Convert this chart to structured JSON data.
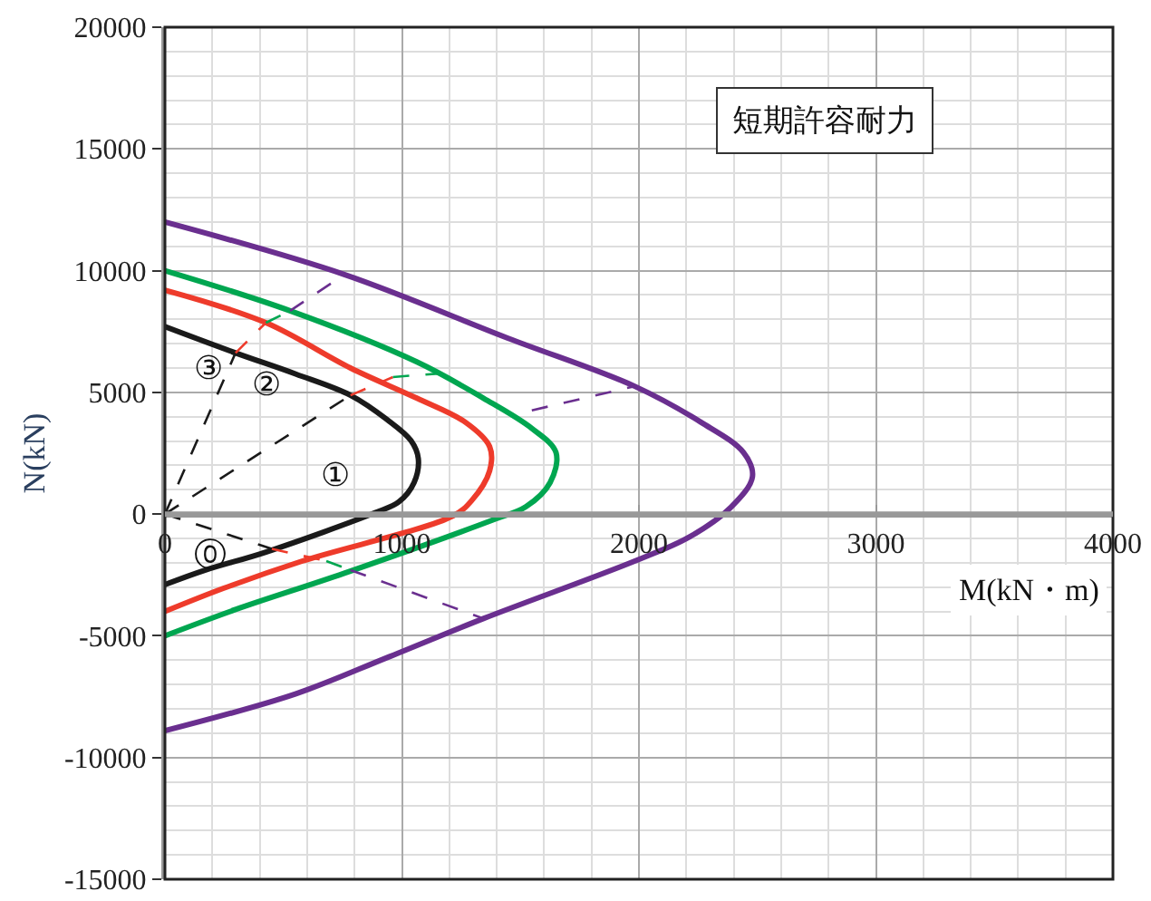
{
  "chart_data": {
    "type": "line",
    "title": "短期許容耐力",
    "xlabel": "M(kN・m)",
    "ylabel": "N(kN)",
    "xlim": [
      0,
      4000
    ],
    "xticks": [
      0,
      1000,
      2000,
      3000,
      4000
    ],
    "ylim": [
      -15000,
      20000
    ],
    "yticks": [
      -15000,
      -10000,
      -5000,
      0,
      5000,
      10000,
      15000,
      20000
    ],
    "grid": true,
    "marker": "none",
    "line_style": "solid",
    "series": [
      {
        "color": "#1a1a1a",
        "x": [
          0,
          298,
          553,
          783,
          936,
          1038,
          1069,
          1051,
          987,
          885,
          426,
          171,
          0
        ],
        "values": [
          7700,
          6620,
          5750,
          4880,
          3890,
          3020,
          2280,
          1290,
          500,
          50,
          -1560,
          -2300,
          -2900
        ]
      },
      {
        "color": "#ee3b2b",
        "x": [
          0,
          426,
          783,
          1063,
          1268,
          1370,
          1370,
          1293,
          1216,
          579,
          247,
          0
        ],
        "values": [
          9200,
          7860,
          6000,
          4760,
          3770,
          2770,
          1780,
          540,
          -70,
          -1930,
          -3050,
          -4000
        ]
      },
      {
        "color": "#00a650",
        "x": [
          0,
          528,
          1063,
          1344,
          1548,
          1650,
          1625,
          1523,
          1395,
          757,
          298,
          0
        ],
        "values": [
          10000,
          8350,
          6250,
          4760,
          3520,
          2530,
          1290,
          300,
          -200,
          -2430,
          -3920,
          -5000
        ]
      },
      {
        "color": "#6a2f8f",
        "x": [
          0,
          757,
          1446,
          1982,
          2262,
          2441,
          2479,
          2390,
          2211,
          1982,
          1344,
          936,
          553,
          0
        ],
        "values": [
          12000,
          9840,
          7230,
          5250,
          3770,
          2530,
          1540,
          300,
          -950,
          -1930,
          -4290,
          -5900,
          -7380,
          -8900
        ]
      },
      {
        "color": "#1a1a1a",
        "line_style": "dashed",
        "x": [
          0,
          298
        ],
        "values": [
          0,
          6620
        ]
      },
      {
        "color": "#ee3b2b",
        "line_style": "dashed",
        "x": [
          298,
          426
        ],
        "values": [
          6620,
          7860
        ]
      },
      {
        "color": "#00a650",
        "line_style": "dashed",
        "x": [
          426,
          528
        ],
        "values": [
          7860,
          8350
        ]
      },
      {
        "color": "#6a2f8f",
        "line_style": "dashed",
        "x": [
          528,
          757
        ],
        "values": [
          8350,
          9840
        ]
      },
      {
        "color": "#1a1a1a",
        "line_style": "dashed",
        "x": [
          0,
          783
        ],
        "values": [
          0,
          4880
        ]
      },
      {
        "color": "#ee3b2b",
        "line_style": "dashed",
        "x": [
          783,
          962
        ],
        "values": [
          4880,
          5630
        ]
      },
      {
        "color": "#00a650",
        "line_style": "dashed",
        "x": [
          962,
          1191
        ],
        "values": [
          5630,
          5800
        ]
      },
      {
        "color": "#6a2f8f",
        "line_style": "dashed",
        "x": [
          1548,
          1982
        ],
        "values": [
          4260,
          5250
        ]
      },
      {
        "color": "#1a1a1a",
        "line_style": "dashed",
        "x": [
          0,
          451
        ],
        "values": [
          0,
          -1430
        ]
      },
      {
        "color": "#ee3b2b",
        "line_style": "dashed",
        "x": [
          451,
          681
        ],
        "values": [
          -1430,
          -1930
        ]
      },
      {
        "color": "#00a650",
        "line_style": "dashed",
        "x": [
          681,
          783
        ],
        "values": [
          -1930,
          -2300
        ]
      },
      {
        "color": "#6a2f8f",
        "line_style": "dashed",
        "x": [
          783,
          1344
        ],
        "values": [
          -2300,
          -4290
        ]
      }
    ],
    "annotations": [
      "①",
      "②",
      "③",
      "⓪"
    ]
  }
}
